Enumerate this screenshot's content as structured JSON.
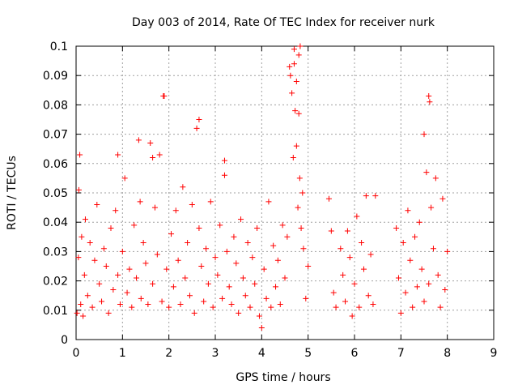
{
  "chart_data": {
    "type": "scatter",
    "title": "Day 003 of 2014, Rate Of TEC Index for receiver nurk",
    "xlabel": "GPS time / hours",
    "ylabel": "ROTI / TECUs",
    "xlim": [
      0,
      9
    ],
    "ylim": [
      0,
      0.1
    ],
    "xticks": [
      "0",
      "1",
      "2",
      "3",
      "4",
      "5",
      "6",
      "7",
      "8",
      "9"
    ],
    "yticks": [
      "0",
      "0.01",
      "0.02",
      "0.03",
      "0.04",
      "0.05",
      "0.06",
      "0.07",
      "0.08",
      "0.09",
      "0.1"
    ],
    "grid": true,
    "marker": "+",
    "series_color": "#ff0000",
    "series": [
      {
        "name": "ROTI",
        "x": [
          0.02,
          0.05,
          0.08,
          0.1,
          0.12,
          0.15,
          0.18,
          0.2,
          0.25,
          0.3,
          0.35,
          0.4,
          0.45,
          0.5,
          0.55,
          0.6,
          0.65,
          0.7,
          0.75,
          0.8,
          0.85,
          0.9,
          0.95,
          1.0,
          1.05,
          1.1,
          1.15,
          1.2,
          1.25,
          1.3,
          1.35,
          1.4,
          1.45,
          1.5,
          1.55,
          1.6,
          1.65,
          1.7,
          1.75,
          1.8,
          1.85,
          1.9,
          1.95,
          2.0,
          2.05,
          2.1,
          2.15,
          2.2,
          2.25,
          2.3,
          2.35,
          2.4,
          2.45,
          2.5,
          2.55,
          2.6,
          2.65,
          2.7,
          2.75,
          2.8,
          2.85,
          2.9,
          2.95,
          3.0,
          3.05,
          3.1,
          3.15,
          3.2,
          3.25,
          3.3,
          3.35,
          3.4,
          3.45,
          3.5,
          3.55,
          3.6,
          3.65,
          3.7,
          3.75,
          3.8,
          3.85,
          3.9,
          3.95,
          4.0,
          4.05,
          4.1,
          4.15,
          4.2,
          4.25,
          4.3,
          4.35,
          4.4,
          4.45,
          4.5,
          4.55,
          4.6,
          4.62,
          4.65,
          4.68,
          4.7,
          4.72,
          4.75,
          4.78,
          4.8,
          4.82,
          4.85,
          4.88,
          4.9,
          4.95,
          5.0,
          5.45,
          5.5,
          5.55,
          5.6,
          5.7,
          5.75,
          5.8,
          5.85,
          5.9,
          5.95,
          6.0,
          6.05,
          6.1,
          6.15,
          6.2,
          6.25,
          6.3,
          6.35,
          6.4,
          6.45,
          6.9,
          6.95,
          7.0,
          7.05,
          7.1,
          7.15,
          7.2,
          7.25,
          7.3,
          7.35,
          7.4,
          7.45,
          7.5,
          7.55,
          7.6,
          7.65,
          7.7,
          7.75,
          7.8,
          7.85,
          7.9,
          7.95,
          8.0,
          0.06,
          0.9,
          1.38,
          1.65,
          1.88,
          2.65,
          3.2,
          4.7,
          4.75,
          4.8,
          4.83,
          7.6,
          7.62,
          7.5
        ],
        "y": [
          0.009,
          0.028,
          0.063,
          0.012,
          0.035,
          0.008,
          0.022,
          0.041,
          0.015,
          0.033,
          0.011,
          0.027,
          0.046,
          0.019,
          0.013,
          0.031,
          0.025,
          0.009,
          0.038,
          0.017,
          0.044,
          0.022,
          0.012,
          0.03,
          0.055,
          0.016,
          0.024,
          0.011,
          0.039,
          0.021,
          0.068,
          0.014,
          0.033,
          0.026,
          0.012,
          0.067,
          0.019,
          0.045,
          0.029,
          0.063,
          0.013,
          0.083,
          0.024,
          0.011,
          0.036,
          0.018,
          0.044,
          0.027,
          0.012,
          0.052,
          0.021,
          0.033,
          0.015,
          0.046,
          0.009,
          0.072,
          0.038,
          0.025,
          0.013,
          0.031,
          0.019,
          0.047,
          0.011,
          0.028,
          0.022,
          0.039,
          0.014,
          0.061,
          0.03,
          0.018,
          0.012,
          0.035,
          0.026,
          0.009,
          0.041,
          0.021,
          0.015,
          0.033,
          0.011,
          0.028,
          0.019,
          0.038,
          0.008,
          0.004,
          0.024,
          0.014,
          0.047,
          0.011,
          0.032,
          0.018,
          0.027,
          0.012,
          0.039,
          0.021,
          0.035,
          0.093,
          0.09,
          0.084,
          0.062,
          0.099,
          0.078,
          0.066,
          0.045,
          0.097,
          0.055,
          0.038,
          0.05,
          0.031,
          0.014,
          0.025,
          0.048,
          0.037,
          0.016,
          0.011,
          0.031,
          0.022,
          0.013,
          0.037,
          0.028,
          0.008,
          0.019,
          0.042,
          0.011,
          0.033,
          0.024,
          0.049,
          0.015,
          0.029,
          0.012,
          0.049,
          0.038,
          0.021,
          0.009,
          0.033,
          0.016,
          0.044,
          0.027,
          0.011,
          0.035,
          0.018,
          0.04,
          0.024,
          0.013,
          0.057,
          0.019,
          0.045,
          0.031,
          0.055,
          0.022,
          0.011,
          0.048,
          0.017,
          0.03,
          0.051,
          0.063,
          0.047,
          0.062,
          0.083,
          0.075,
          0.056,
          0.094,
          0.088,
          0.077,
          0.1,
          0.083,
          0.081,
          0.07
        ]
      }
    ]
  }
}
